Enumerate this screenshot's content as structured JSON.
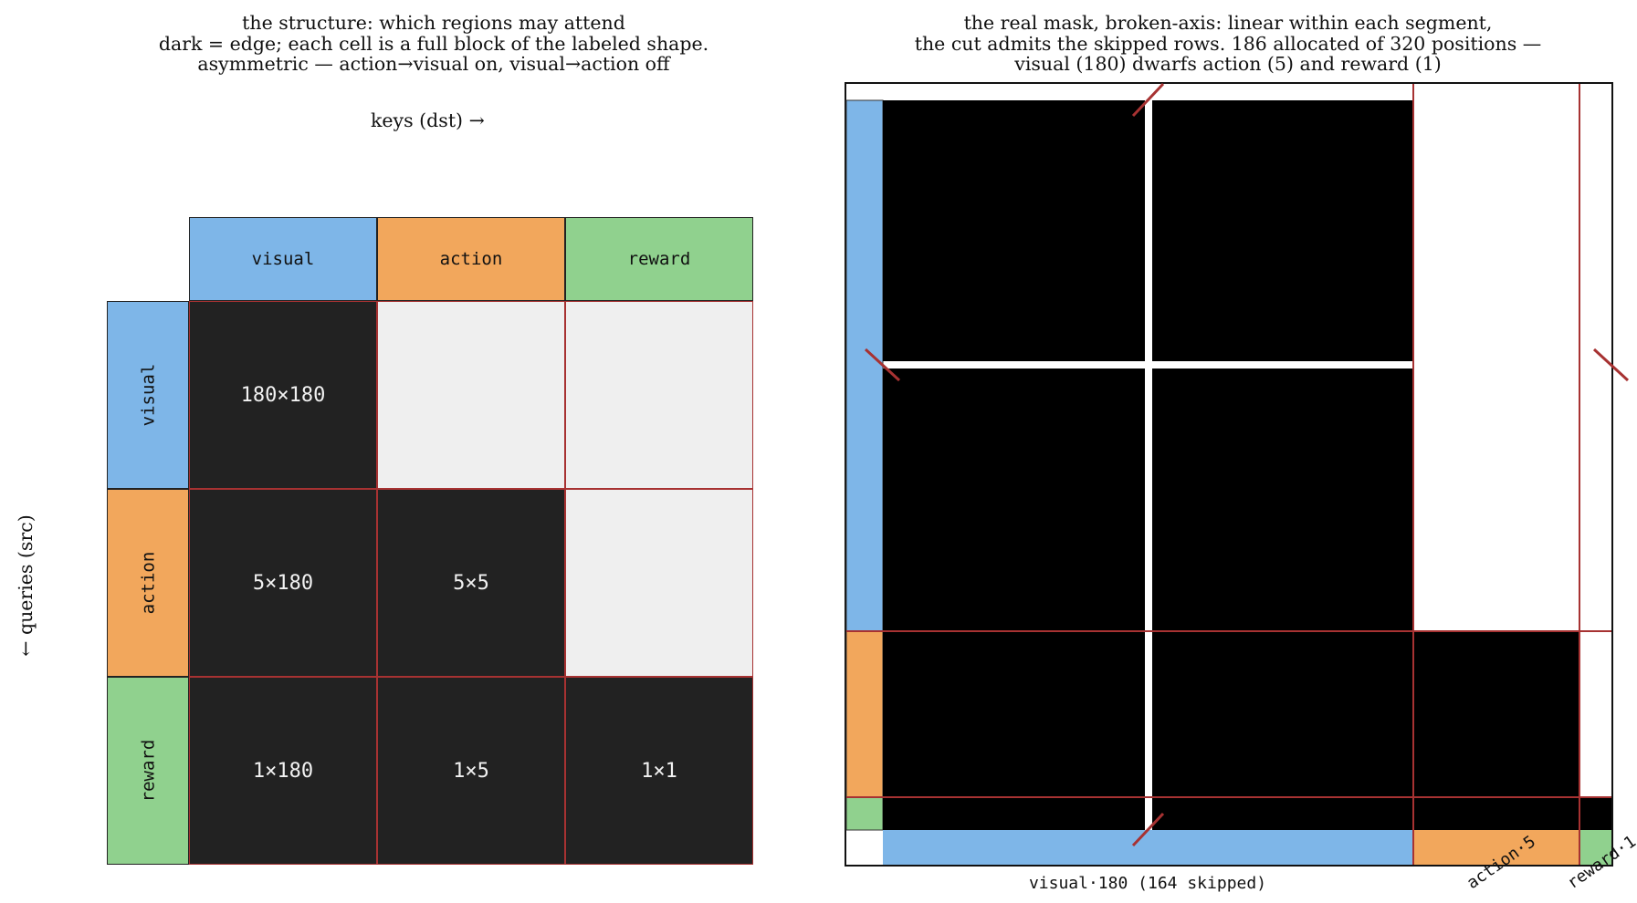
{
  "left_panel": {
    "title_lines": [
      "the structure: which regions may attend",
      "dark = edge; each cell is a full block of the labeled shape.",
      "asymmetric — action→visual on, visual→action off"
    ],
    "x_axis_label": "keys (dst) →",
    "y_axis_label": "← queries (src)",
    "columns": [
      "visual",
      "action",
      "reward"
    ],
    "rows": [
      "visual",
      "action",
      "reward"
    ],
    "cells": [
      [
        "180×180",
        "",
        ""
      ],
      [
        "5×180",
        "5×5",
        ""
      ],
      [
        "1×180",
        "1×5",
        "1×1"
      ]
    ],
    "cell_on": [
      [
        true,
        false,
        false
      ],
      [
        true,
        true,
        false
      ],
      [
        true,
        true,
        true
      ]
    ]
  },
  "right_panel": {
    "title_lines": [
      "the real mask, broken-axis: linear within each segment,",
      "the cut admits the skipped rows. 186 allocated of 320 positions —",
      "visual (180) dwarfs action (5) and reward (1)"
    ],
    "segment_labels": {
      "visual": "visual·180 (164 skipped)",
      "action": "action·5",
      "reward": "reward·1"
    },
    "segments": [
      {
        "name": "visual",
        "size": 180,
        "skipped": 164
      },
      {
        "name": "action",
        "size": 5
      },
      {
        "name": "reward",
        "size": 1
      }
    ],
    "allocated": 186,
    "total_positions": 320
  },
  "colors": {
    "visual": "#7eb6e8",
    "action": "#f2a75c",
    "reward": "#90d18e",
    "edge": "#222222",
    "no_edge": "#efefef",
    "mask_on": "#000000",
    "boundary": "#a73232"
  }
}
